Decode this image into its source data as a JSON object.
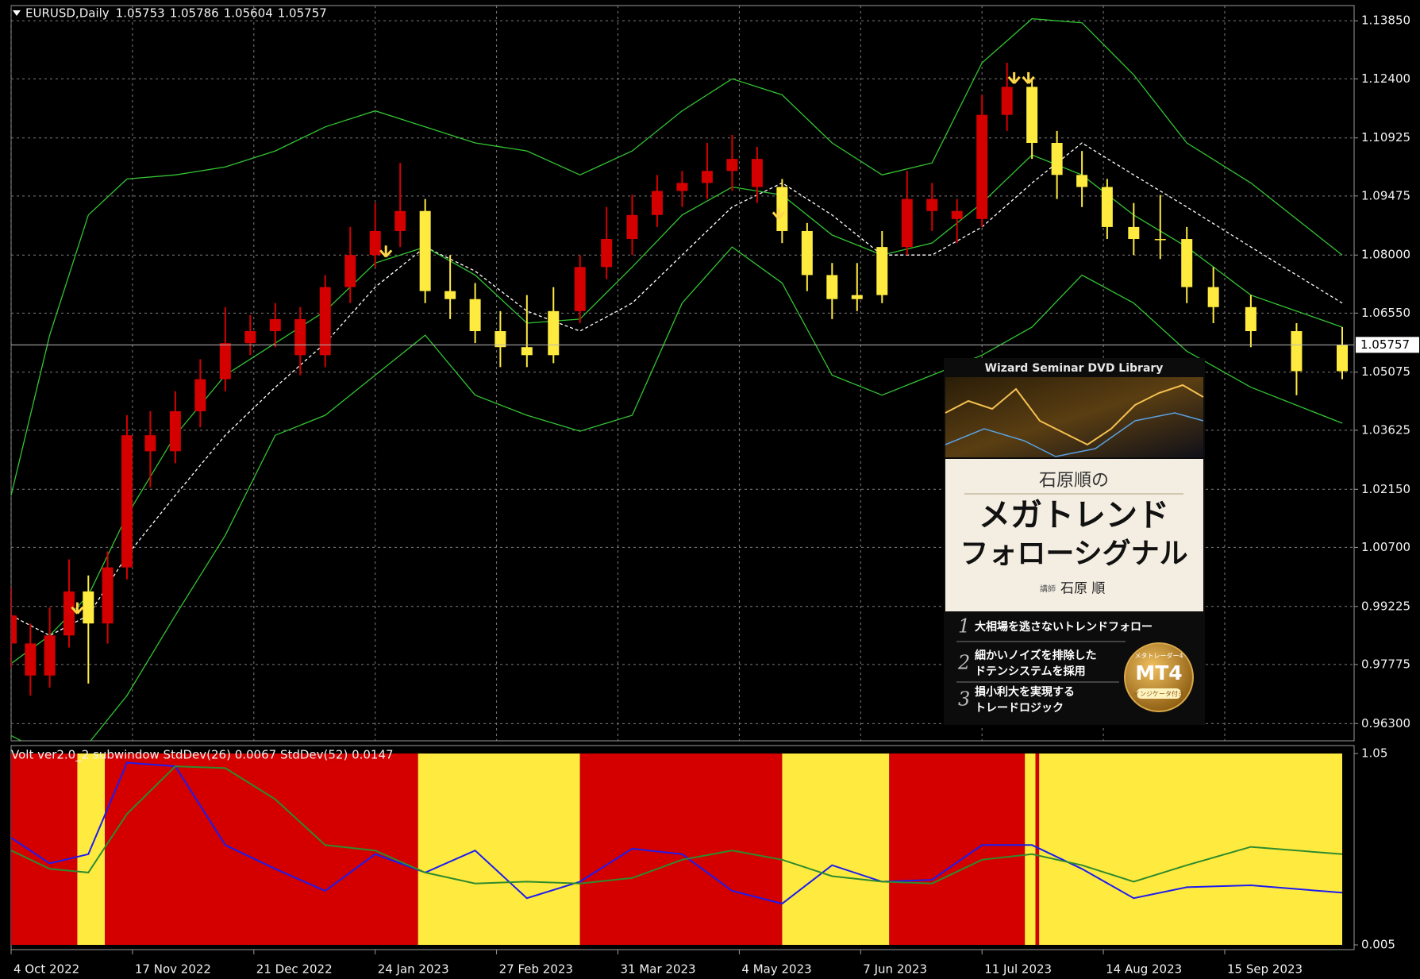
{
  "chart_data": [
    {
      "type": "candlestick",
      "title": "EURUSD,Daily",
      "header_values": [
        1.05753,
        1.05786,
        1.05604,
        1.05757
      ],
      "x": [
        "2022-10-04",
        "2022-10-11",
        "2022-10-18",
        "2022-10-25",
        "2022-11-01",
        "2022-11-08",
        "2022-11-15",
        "2022-11-22",
        "2022-11-29",
        "2022-12-06",
        "2022-12-13",
        "2022-12-20",
        "2022-12-27",
        "2023-01-03",
        "2023-01-10",
        "2023-01-17",
        "2023-01-24",
        "2023-01-31",
        "2023-02-07",
        "2023-02-14",
        "2023-02-21",
        "2023-02-28",
        "2023-03-07",
        "2023-03-14",
        "2023-03-21",
        "2023-03-28",
        "2023-04-04",
        "2023-04-11",
        "2023-04-18",
        "2023-04-25",
        "2023-05-02",
        "2023-05-09",
        "2023-05-16",
        "2023-05-23",
        "2023-05-30",
        "2023-06-06",
        "2023-06-13",
        "2023-06-20",
        "2023-06-27",
        "2023-07-04",
        "2023-07-11",
        "2023-07-18",
        "2023-07-25",
        "2023-08-01",
        "2023-08-08",
        "2023-08-15",
        "2023-08-22",
        "2023-08-29",
        "2023-09-05",
        "2023-09-12",
        "2023-09-19",
        "2023-09-26",
        "2023-10-03"
      ],
      "candles": [
        [
          0.99,
          0.997,
          0.977,
          0.983
        ],
        [
          0.983,
          0.988,
          0.97,
          0.975
        ],
        [
          0.975,
          0.992,
          0.972,
          0.985
        ],
        [
          0.985,
          1.004,
          0.982,
          0.996
        ],
        [
          0.996,
          1.0,
          0.973,
          0.988
        ],
        [
          0.988,
          1.006,
          0.983,
          1.002
        ],
        [
          1.002,
          1.04,
          0.999,
          1.035
        ],
        [
          1.035,
          1.041,
          1.022,
          1.031
        ],
        [
          1.031,
          1.046,
          1.028,
          1.041
        ],
        [
          1.041,
          1.054,
          1.037,
          1.049
        ],
        [
          1.049,
          1.067,
          1.046,
          1.058
        ],
        [
          1.058,
          1.065,
          1.055,
          1.061
        ],
        [
          1.061,
          1.068,
          1.057,
          1.064
        ],
        [
          1.064,
          1.067,
          1.05,
          1.055
        ],
        [
          1.055,
          1.075,
          1.052,
          1.072
        ],
        [
          1.072,
          1.087,
          1.068,
          1.08
        ],
        [
          1.08,
          1.093,
          1.077,
          1.086
        ],
        [
          1.086,
          1.103,
          1.082,
          1.091
        ],
        [
          1.091,
          1.094,
          1.068,
          1.071
        ],
        [
          1.071,
          1.08,
          1.064,
          1.069
        ],
        [
          1.069,
          1.073,
          1.058,
          1.061
        ],
        [
          1.061,
          1.066,
          1.052,
          1.057
        ],
        [
          1.057,
          1.07,
          1.052,
          1.055
        ],
        [
          1.055,
          1.072,
          1.053,
          1.066
        ],
        [
          1.066,
          1.08,
          1.063,
          1.077
        ],
        [
          1.077,
          1.092,
          1.074,
          1.084
        ],
        [
          1.084,
          1.095,
          1.08,
          1.09
        ],
        [
          1.09,
          1.1,
          1.087,
          1.096
        ],
        [
          1.096,
          1.101,
          1.092,
          1.098
        ],
        [
          1.098,
          1.108,
          1.094,
          1.101
        ],
        [
          1.101,
          1.11,
          1.096,
          1.104
        ],
        [
          1.104,
          1.107,
          1.093,
          1.097
        ],
        [
          1.097,
          1.099,
          1.083,
          1.086
        ],
        [
          1.086,
          1.088,
          1.071,
          1.075
        ],
        [
          1.075,
          1.078,
          1.064,
          1.069
        ],
        [
          1.069,
          1.078,
          1.066,
          1.07
        ],
        [
          1.07,
          1.086,
          1.068,
          1.082
        ],
        [
          1.082,
          1.101,
          1.08,
          1.094
        ],
        [
          1.094,
          1.098,
          1.086,
          1.091
        ],
        [
          1.091,
          1.094,
          1.083,
          1.089
        ],
        [
          1.089,
          1.12,
          1.087,
          1.115
        ],
        [
          1.115,
          1.128,
          1.111,
          1.122
        ],
        [
          1.122,
          1.124,
          1.104,
          1.108
        ],
        [
          1.108,
          1.111,
          1.094,
          1.1
        ],
        [
          1.1,
          1.106,
          1.092,
          1.097
        ],
        [
          1.097,
          1.099,
          1.084,
          1.087
        ],
        [
          1.087,
          1.093,
          1.08,
          1.084
        ],
        [
          1.084,
          1.095,
          1.079,
          1.084
        ],
        [
          1.084,
          1.087,
          1.068,
          1.072
        ],
        [
          1.072,
          1.077,
          1.063,
          1.067
        ],
        [
          1.067,
          1.07,
          1.057,
          1.061
        ],
        [
          1.061,
          1.063,
          1.045,
          1.051
        ],
        [
          1.051,
          1.062,
          1.049,
          1.05757
        ]
      ],
      "current_price_color": "#b8b8b8",
      "xlim": [
        "2022-10-04",
        "2023-10-03"
      ],
      "xticks": [
        {
          "value": "2022-10-04",
          "label": "4 Oct 2022"
        },
        {
          "value": "2022-11-17",
          "label": "17 Nov 2022"
        },
        {
          "value": "2022-12-21",
          "label": "21 Dec 2022"
        },
        {
          "value": "2023-01-24",
          "label": "24 Jan 2023"
        },
        {
          "value": "2023-02-27",
          "label": "27 Feb 2023"
        },
        {
          "value": "2023-03-31",
          "label": "31 Mar 2023"
        },
        {
          "value": "2023-05-04",
          "label": "4 May 2023"
        },
        {
          "value": "2023-06-07",
          "label": "7 Jun 2023"
        },
        {
          "value": "2023-07-11",
          "label": "11 Jul 2023"
        },
        {
          "value": "2023-08-14",
          "label": "14 Aug 2023"
        },
        {
          "value": "2023-09-15",
          "label": "15 Sep 2023"
        }
      ],
      "ylim": [
        0.9587,
        1.1423
      ],
      "yticks": [
        {
          "value": 1.1385,
          "label": "1.13850"
        },
        {
          "value": 1.124,
          "label": "1.12400"
        },
        {
          "value": 1.10925,
          "label": "1.10925"
        },
        {
          "value": 1.09475,
          "label": "1.09475"
        },
        {
          "value": 1.08,
          "label": "1.08000"
        },
        {
          "value": 1.0655,
          "label": "1.06550"
        },
        {
          "value": 1.05075,
          "label": "1.05075"
        },
        {
          "value": 1.03625,
          "label": "1.03625"
        },
        {
          "value": 1.0215,
          "label": "1.02150"
        },
        {
          "value": 1.007,
          "label": "1.00700"
        },
        {
          "value": 0.99225,
          "label": "0.99225"
        },
        {
          "value": 0.97775,
          "label": "0.97775"
        },
        {
          "value": 0.963,
          "label": "0.96300"
        }
      ],
      "grid": true,
      "overlay": {
        "x": [
          "2022-10-04",
          "2022-10-18",
          "2022-11-01",
          "2022-11-15",
          "2022-11-29",
          "2022-12-13",
          "2022-12-27",
          "2023-01-10",
          "2023-01-24",
          "2023-02-07",
          "2023-02-21",
          "2023-03-07",
          "2023-03-21",
          "2023-04-04",
          "2023-04-18",
          "2023-05-02",
          "2023-05-16",
          "2023-05-30",
          "2023-06-13",
          "2023-06-27",
          "2023-07-11",
          "2023-07-25",
          "2023-08-08",
          "2023-08-22",
          "2023-09-05",
          "2023-09-19",
          "2023-10-03"
        ],
        "series": [
          {
            "color": "#33c433",
            "values": [
              1.02,
              1.06,
              1.09,
              1.099,
              1.1,
              1.102,
              1.106,
              1.112,
              1.116,
              1.112,
              1.108,
              1.106,
              1.1,
              1.106,
              1.116,
              1.124,
              1.12,
              1.108,
              1.1,
              1.103,
              1.128,
              1.139,
              1.138,
              1.125,
              1.108,
              1.098,
              1.08
            ]
          },
          {
            "color": "#ffffff",
            "dash": true,
            "values": [
              0.99,
              0.985,
              0.99,
              1.005,
              1.02,
              1.035,
              1.047,
              1.058,
              1.072,
              1.082,
              1.076,
              1.066,
              1.061,
              1.068,
              1.08,
              1.092,
              1.098,
              1.09,
              1.08,
              1.08,
              1.087,
              1.098,
              1.108,
              1.1,
              1.092,
              1.082,
              1.068
            ]
          },
          {
            "color": "#33c433",
            "values": [
              0.978,
              0.985,
              0.995,
              1.015,
              1.035,
              1.05,
              1.058,
              1.066,
              1.078,
              1.082,
              1.075,
              1.063,
              1.064,
              1.077,
              1.09,
              1.097,
              1.095,
              1.085,
              1.08,
              1.083,
              1.093,
              1.105,
              1.1,
              1.09,
              1.082,
              1.07,
              1.062
            ]
          },
          {
            "color": "#33c433",
            "values": [
              0.96,
              0.955,
              0.958,
              0.97,
              0.99,
              1.01,
              1.035,
              1.04,
              1.05,
              1.06,
              1.045,
              1.04,
              1.036,
              1.04,
              1.068,
              1.082,
              1.073,
              1.05,
              1.045,
              1.05,
              1.055,
              1.062,
              1.075,
              1.068,
              1.056,
              1.047,
              1.038
            ]
          }
        ]
      },
      "signals": {
        "color": "#ffd84a",
        "x": [
          "2022-10-28",
          "2023-01-27",
          "2023-05-15",
          "2023-07-20",
          "2023-07-24"
        ],
        "values": [
          0.9889,
          1.078,
          1.0875,
          1.1213,
          1.1213
        ]
      }
    },
    {
      "type": "line",
      "title": "Volt ver2.0_2 subwindow  StdDev(26) 0.0067  StdDev(52) 0.0147",
      "x": [
        "2022-10-04",
        "2022-10-18",
        "2022-11-01",
        "2022-11-15",
        "2022-11-29",
        "2022-12-13",
        "2022-12-27",
        "2023-01-10",
        "2023-01-24",
        "2023-02-07",
        "2023-02-21",
        "2023-03-07",
        "2023-03-21",
        "2023-04-04",
        "2023-04-18",
        "2023-05-02",
        "2023-05-16",
        "2023-05-30",
        "2023-06-13",
        "2023-06-27",
        "2023-07-11",
        "2023-07-25",
        "2023-08-08",
        "2023-08-22",
        "2023-09-05",
        "2023-09-19",
        "2023-10-03"
      ],
      "series": [
        {
          "color": "#1c1cf0",
          "values": [
            0.59,
            0.45,
            0.5,
            1.0,
            0.98,
            0.55,
            0.42,
            0.3,
            0.5,
            0.4,
            0.52,
            0.26,
            0.35,
            0.53,
            0.5,
            0.3,
            0.23,
            0.44,
            0.35,
            0.36,
            0.55,
            0.55,
            0.42,
            0.26,
            0.32,
            0.33,
            0.29
          ]
        },
        {
          "color": "#2e8b2e",
          "values": [
            0.52,
            0.42,
            0.4,
            0.72,
            0.98,
            0.97,
            0.8,
            0.55,
            0.52,
            0.4,
            0.34,
            0.35,
            0.34,
            0.37,
            0.47,
            0.52,
            0.47,
            0.38,
            0.35,
            0.34,
            0.47,
            0.5,
            0.44,
            0.35,
            0.44,
            0.54,
            0.5
          ]
        }
      ],
      "ylim": [
        0.005,
        1.05
      ],
      "yticks": [
        1.05,
        0.005
      ],
      "regimes": {
        "starts": [
          "2022-10-04",
          "2022-10-28",
          "2022-11-07",
          "2023-02-05",
          "2023-03-21",
          "2023-05-16",
          "2023-06-15",
          "2023-07-23",
          "2023-07-26",
          "2023-07-27"
        ],
        "ends": [
          "2022-10-28",
          "2022-11-07",
          "2023-02-05",
          "2023-03-21",
          "2023-05-16",
          "2023-06-15",
          "2023-07-23",
          "2023-07-26",
          "2023-07-27",
          "2023-10-03"
        ],
        "colors": [
          "#d40000",
          "#ffea3f",
          "#d40000",
          "#ffea3f",
          "#d40000",
          "#ffea3f",
          "#d40000",
          "#ffea3f",
          "#d40000",
          "#ffea3f"
        ]
      }
    }
  ],
  "ad": {
    "banner": "Wizard Seminar DVD Library",
    "title_small": "石原順の",
    "title_line1": "メガトレンド",
    "title_line2": "フォローシグナル",
    "lecturer_label": "講師",
    "lecturer": "石原 順",
    "points": [
      {
        "number": "1",
        "lines": [
          "大相場を逃さないトレンドフォロー"
        ]
      },
      {
        "number": "2",
        "lines": [
          "細かいノイズを排除した",
          "ドテンシステムを採用"
        ]
      },
      {
        "number": "3",
        "lines": [
          "損小利大を実現する",
          "トレードロジック"
        ]
      }
    ],
    "badge": {
      "top": "メタトレーダー4",
      "main": "MT4",
      "bottom": "インジケータ付き"
    }
  }
}
